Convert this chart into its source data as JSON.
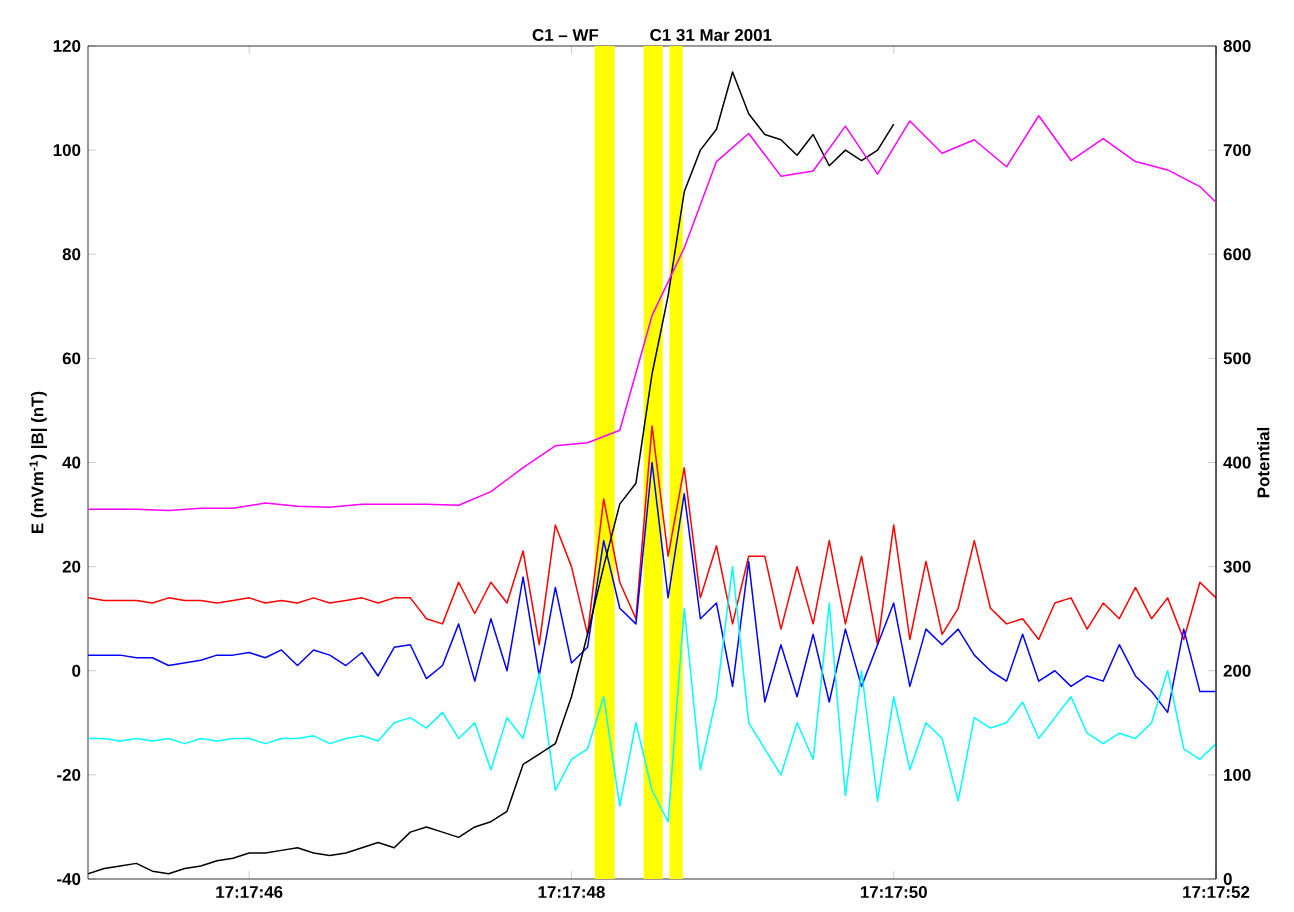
{
  "chart_data": {
    "type": "line",
    "title": "C1 – WF",
    "subtitle": "C1 31 Mar 2001",
    "ylabel": "E (mVm$^{-1}$)   |B| (nT)",
    "y2label": "Potential",
    "x": [
      17.2958333,
      17.2958611,
      17.2958889,
      17.2959167,
      17.2959444,
      17.2959722,
      17.296,
      17.2960278,
      17.2960556,
      17.2960833,
      17.2961111,
      17.2961389,
      17.2961667,
      17.2961944,
      17.2962222,
      17.29625,
      17.2962778,
      17.2963056,
      17.2963333,
      17.2963611,
      17.2963889,
      17.2964167,
      17.2964444,
      17.2964722,
      17.2965,
      17.2965278,
      17.2965556,
      17.2965833,
      17.2966111,
      17.2966389,
      17.2966667,
      17.2966944,
      17.2967222,
      17.29675,
      17.2967778,
      17.2968056,
      17.2968333,
      17.2968611,
      17.2968889,
      17.2969167,
      17.2969444,
      17.2969722,
      17.297,
      17.2970278,
      17.2970556,
      17.2970833,
      17.2971111,
      17.2971389,
      17.2971667,
      17.2971944,
      17.2972222,
      17.29725,
      17.2972778,
      17.2973056,
      17.2973333,
      17.2973611,
      17.2973889,
      17.2974167,
      17.2974444,
      17.2974722,
      17.2975,
      17.2975278,
      17.2975556,
      17.2975833,
      17.2976111,
      17.2976389,
      17.2976667,
      17.2976944,
      17.2977222,
      17.29775,
      17.2977778
    ],
    "xlim": [
      17.2958333,
      17.2977778
    ],
    "xticks": [
      {
        "value": 17.2961111,
        "label": "17:17:46"
      },
      {
        "value": 17.2966667,
        "label": "17:17:48"
      },
      {
        "value": 17.2972222,
        "label": "17:17:50"
      },
      {
        "value": 17.2977778,
        "label": "17:17:52"
      }
    ],
    "ylim": [
      -40,
      120
    ],
    "yticks": [
      -40,
      -20,
      0,
      20,
      40,
      60,
      80,
      100,
      120
    ],
    "y2lim": [
      0,
      800
    ],
    "y2ticks": [
      0,
      100,
      200,
      300,
      400,
      500,
      600,
      700,
      800
    ],
    "bands": [
      {
        "axis": "x",
        "from": 17.2967067,
        "to": 17.2967411,
        "color": "#ffff00"
      },
      {
        "axis": "x",
        "from": 17.2967911,
        "to": 17.2968239,
        "color": "#ffff00"
      },
      {
        "axis": "x",
        "from": 17.2968358,
        "to": 17.2968583,
        "color": "#ffff00"
      }
    ],
    "series": [
      {
        "color": "#ff00ff",
        "axis": "y2",
        "x": [
          17.2958333,
          17.2958611,
          17.2959167,
          17.2959722,
          17.2960278,
          17.2960833,
          17.2961389,
          17.2961944,
          17.29625,
          17.2963056,
          17.2963611,
          17.2964167,
          17.2964722,
          17.2965278,
          17.2965833,
          17.2966389,
          17.2966944,
          17.29675,
          17.2968056,
          17.2968611,
          17.2969167,
          17.2969722,
          17.2970278,
          17.2970833,
          17.2971389,
          17.2971944,
          17.29725,
          17.2973056,
          17.2973611,
          17.2974167,
          17.2974722,
          17.2975278,
          17.2975833,
          17.2976389,
          17.2976944,
          17.29775,
          17.2977778
        ],
        "values": [
          355,
          355,
          355,
          354,
          356,
          356,
          361,
          358,
          357,
          360,
          360,
          360,
          359,
          372,
          395,
          416,
          419,
          431,
          541,
          606,
          689,
          716,
          675,
          680,
          723,
          677,
          728,
          697,
          710,
          684,
          733,
          690,
          711,
          689,
          681,
          665,
          650
        ]
      },
      {
        "color": "#ff0000",
        "values": [
          14,
          13.5,
          13.5,
          13.5,
          13,
          14,
          13.5,
          13.5,
          13,
          13.5,
          14,
          13,
          13.5,
          13,
          14,
          13,
          13.5,
          14,
          13,
          14,
          14,
          10,
          9,
          17,
          11,
          17,
          13,
          23,
          5,
          28,
          20,
          7,
          33,
          17,
          10,
          47,
          22,
          39,
          14,
          24,
          9,
          22,
          22,
          8,
          20,
          9,
          25,
          9,
          22,
          5,
          28,
          6,
          21,
          7,
          12,
          25,
          12,
          9,
          10,
          6,
          13,
          14,
          8,
          13,
          10,
          16,
          10,
          14,
          6,
          17,
          14
        ]
      },
      {
        "color": "#0000ff",
        "values": [
          3,
          3,
          3,
          2.5,
          2.5,
          1,
          1.5,
          2,
          3,
          3,
          3.5,
          2.5,
          4,
          1,
          4,
          3,
          1,
          3.5,
          -1,
          4.5,
          5,
          -1.5,
          1,
          9,
          -2,
          10,
          0,
          18,
          -1,
          16,
          1.5,
          4.5,
          25,
          12,
          9,
          40,
          14,
          34,
          10,
          13,
          -3,
          21,
          -6,
          5,
          -5,
          7,
          -6,
          8,
          -3,
          5,
          13,
          -3,
          8,
          5,
          8,
          3,
          0,
          -2,
          7,
          -2,
          0,
          -3,
          -1,
          -2,
          5,
          -1,
          -4,
          -8,
          8,
          -4,
          -4
        ]
      },
      {
        "color": "#00ffff",
        "values": [
          -13,
          -13,
          -13.5,
          -13,
          -13.5,
          -13,
          -14,
          -13,
          -13.5,
          -13,
          -13,
          -14,
          -13,
          -13,
          -12.5,
          -14,
          -13,
          -12.5,
          -13.5,
          -10,
          -9,
          -11,
          -8,
          -13,
          -10,
          -19,
          -9,
          -13,
          -0.5,
          -23,
          -17,
          -15,
          -5,
          -26,
          -10,
          -23,
          -29,
          12,
          -19,
          -5,
          20,
          -10,
          -15,
          -20,
          -10,
          -17,
          13,
          -24,
          0,
          -25,
          -5,
          -19,
          -10,
          -13,
          -25,
          -9,
          -11,
          -10,
          -6,
          -13,
          -9,
          -5,
          -12,
          -14,
          -12,
          -13,
          -10,
          0,
          -15,
          -17,
          -14
        ]
      },
      {
        "color": "#000000",
        "values": [
          -39,
          -38,
          -37.5,
          -37,
          -38.5,
          -39,
          -38,
          -37.5,
          -36.5,
          -36,
          -35,
          -35,
          -34.5,
          -34,
          -35,
          -35.5,
          -35,
          -34,
          -33,
          -34,
          -31,
          -30,
          -31,
          -32,
          -30,
          -29,
          -27,
          -18,
          -16,
          -14,
          -5,
          7,
          20,
          32,
          36,
          57,
          72,
          92,
          100,
          104,
          115,
          107,
          103,
          102,
          99,
          103,
          97,
          100,
          98,
          100,
          105,
          null,
          null,
          null,
          null,
          null,
          null,
          null,
          null,
          null,
          null,
          null,
          null,
          null,
          null,
          null,
          null,
          null,
          null,
          null,
          null
        ]
      }
    ]
  }
}
